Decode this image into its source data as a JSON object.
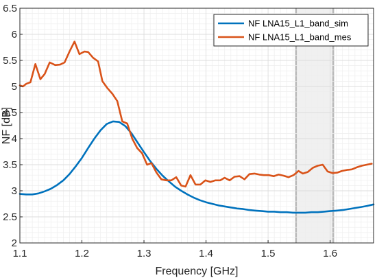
{
  "chart_data": {
    "type": "line",
    "xlabel": "Frequency [GHz]",
    "ylabel": "NF [dB]",
    "xlim": [
      1.1,
      1.67
    ],
    "ylim": [
      2,
      6.5
    ],
    "x_ticks": [
      1.1,
      1.2,
      1.3,
      1.4,
      1.5,
      1.6
    ],
    "x_tick_labels": [
      "1.1",
      "1.2",
      "1.3",
      "1.4",
      "1.5",
      "1.6"
    ],
    "y_ticks": [
      2,
      2.5,
      3,
      3.5,
      4,
      4.5,
      5,
      5.5,
      6,
      6.5
    ],
    "y_tick_labels": [
      "2",
      "2.5",
      "3",
      "3.5",
      "4",
      "4.5",
      "5",
      "5.5",
      "6",
      "6.5"
    ],
    "grid": true,
    "minor_grid": true,
    "legend_position": "top-right",
    "highlight_band": {
      "x_start": 1.545,
      "x_end": 1.605
    },
    "series": [
      {
        "name": "NF LNA15_L1_band_sim",
        "color": "#0072BD",
        "x": [
          1.1,
          1.11,
          1.12,
          1.13,
          1.14,
          1.15,
          1.16,
          1.17,
          1.18,
          1.19,
          1.2,
          1.21,
          1.22,
          1.23,
          1.24,
          1.25,
          1.26,
          1.27,
          1.28,
          1.29,
          1.3,
          1.31,
          1.32,
          1.33,
          1.34,
          1.35,
          1.36,
          1.37,
          1.38,
          1.39,
          1.4,
          1.41,
          1.42,
          1.43,
          1.44,
          1.45,
          1.46,
          1.47,
          1.48,
          1.49,
          1.5,
          1.51,
          1.52,
          1.53,
          1.54,
          1.55,
          1.56,
          1.57,
          1.58,
          1.59,
          1.6,
          1.61,
          1.62,
          1.63,
          1.64,
          1.65,
          1.66,
          1.67
        ],
        "y": [
          2.94,
          2.93,
          2.93,
          2.95,
          2.99,
          3.04,
          3.11,
          3.2,
          3.32,
          3.47,
          3.63,
          3.82,
          4.0,
          4.16,
          4.28,
          4.33,
          4.32,
          4.24,
          4.1,
          3.92,
          3.74,
          3.57,
          3.42,
          3.29,
          3.18,
          3.08,
          3.0,
          2.93,
          2.87,
          2.82,
          2.78,
          2.75,
          2.72,
          2.7,
          2.68,
          2.66,
          2.65,
          2.63,
          2.62,
          2.61,
          2.6,
          2.6,
          2.59,
          2.59,
          2.58,
          2.58,
          2.58,
          2.59,
          2.59,
          2.6,
          2.61,
          2.62,
          2.63,
          2.65,
          2.67,
          2.69,
          2.71,
          2.74
        ]
      },
      {
        "name": "NF LNA15_L1_band_mes",
        "color": "#D95319",
        "x": [
          1.1,
          1.105,
          1.11,
          1.117,
          1.125,
          1.133,
          1.14,
          1.148,
          1.157,
          1.165,
          1.172,
          1.18,
          1.188,
          1.196,
          1.204,
          1.21,
          1.218,
          1.226,
          1.233,
          1.241,
          1.249,
          1.257,
          1.265,
          1.273,
          1.281,
          1.289,
          1.297,
          1.305,
          1.312,
          1.32,
          1.328,
          1.336,
          1.344,
          1.352,
          1.36,
          1.367,
          1.375,
          1.383,
          1.391,
          1.399,
          1.407,
          1.415,
          1.423,
          1.43,
          1.438,
          1.446,
          1.454,
          1.462,
          1.47,
          1.478,
          1.486,
          1.493,
          1.501,
          1.509,
          1.517,
          1.525,
          1.533,
          1.541,
          1.549,
          1.556,
          1.564,
          1.572,
          1.58,
          1.588,
          1.596,
          1.604,
          1.612,
          1.619,
          1.627,
          1.635,
          1.643,
          1.651,
          1.659,
          1.667
        ],
        "y": [
          5.02,
          5.0,
          5.05,
          5.08,
          5.43,
          5.14,
          5.24,
          5.46,
          5.41,
          5.42,
          5.46,
          5.67,
          5.86,
          5.62,
          5.67,
          5.66,
          5.55,
          5.48,
          5.1,
          4.97,
          4.86,
          4.72,
          4.33,
          4.29,
          4.0,
          3.82,
          3.72,
          3.5,
          3.53,
          3.35,
          3.22,
          3.2,
          3.2,
          3.26,
          3.1,
          3.08,
          3.3,
          3.12,
          3.12,
          3.2,
          3.17,
          3.2,
          3.2,
          3.25,
          3.2,
          3.27,
          3.28,
          3.22,
          3.32,
          3.33,
          3.31,
          3.3,
          3.3,
          3.28,
          3.31,
          3.29,
          3.26,
          3.3,
          3.38,
          3.33,
          3.36,
          3.44,
          3.48,
          3.5,
          3.37,
          3.34,
          3.35,
          3.38,
          3.4,
          3.41,
          3.45,
          3.48,
          3.5,
          3.52
        ]
      }
    ]
  }
}
